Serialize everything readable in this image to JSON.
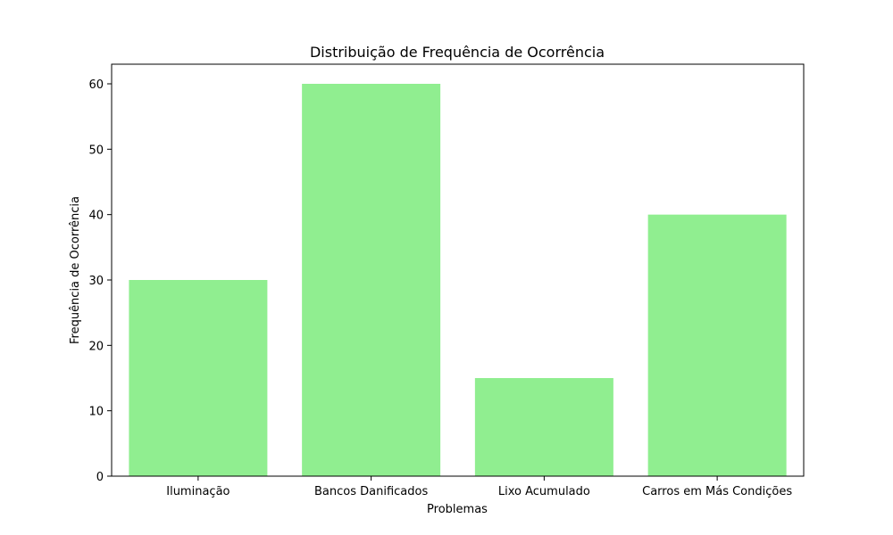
{
  "chart_data": {
    "type": "bar",
    "title": "Distribuição de Frequência de Ocorrência",
    "xlabel": "Problemas",
    "ylabel": "Frequência de Ocorrência",
    "categories": [
      "Iluminação",
      "Bancos Danificados",
      "Lixo Acumulado",
      "Carros em Más Condições"
    ],
    "values": [
      30,
      60,
      15,
      40
    ],
    "ylim": [
      0,
      63
    ],
    "yticks": [
      0,
      10,
      20,
      30,
      40,
      50,
      60
    ],
    "bar_color": "#90ee90",
    "grid": false,
    "legend": "none"
  }
}
